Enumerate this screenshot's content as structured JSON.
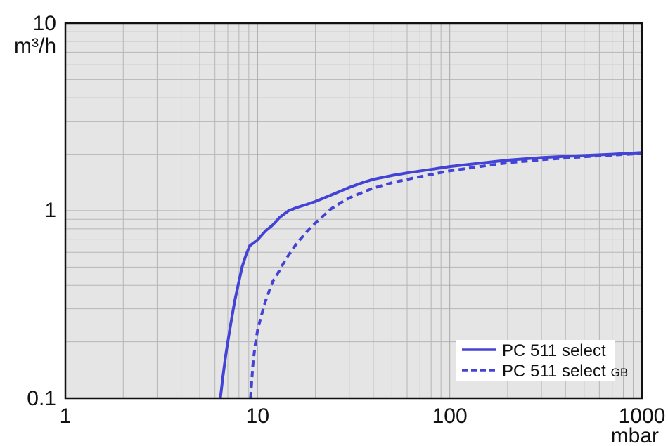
{
  "chart_data": {
    "type": "line",
    "title": "",
    "x_axis": {
      "label": "mbar",
      "scale": "log",
      "min": 1,
      "max": 1000,
      "ticks": [
        1,
        10,
        100,
        1000
      ],
      "tick_labels": [
        "1",
        "10",
        "100",
        "1000"
      ]
    },
    "y_axis": {
      "label": "m³/h",
      "scale": "log",
      "min": 0.1,
      "max": 10,
      "ticks": [
        0.1,
        1,
        10
      ],
      "tick_labels": [
        "0.1",
        "1",
        "10"
      ]
    },
    "grid": {
      "minor": true,
      "background_color": "#e5e5e5",
      "major_color": "#a8a8a8",
      "minor_color": "#b6b6b6",
      "frame_color": "#111111"
    },
    "legend": {
      "position": "bottom-right",
      "background_color": "#ffffff"
    },
    "accent_color": "#4343d6",
    "series": [
      {
        "name": "PC 511 select",
        "suffix": "",
        "style": "solid",
        "color": "#4343d6",
        "points": [
          [
            6.4,
            0.1
          ],
          [
            6.6,
            0.13
          ],
          [
            6.8,
            0.165
          ],
          [
            7.0,
            0.2
          ],
          [
            7.3,
            0.26
          ],
          [
            7.6,
            0.33
          ],
          [
            8.0,
            0.42
          ],
          [
            8.3,
            0.5
          ],
          [
            8.7,
            0.58
          ],
          [
            9.1,
            0.65
          ],
          [
            10,
            0.7
          ],
          [
            11,
            0.78
          ],
          [
            12,
            0.84
          ],
          [
            13,
            0.92
          ],
          [
            14.5,
            1.0
          ],
          [
            16,
            1.04
          ],
          [
            18,
            1.08
          ],
          [
            20,
            1.12
          ],
          [
            25,
            1.23
          ],
          [
            30,
            1.33
          ],
          [
            35,
            1.41
          ],
          [
            40,
            1.47
          ],
          [
            50,
            1.54
          ],
          [
            60,
            1.59
          ],
          [
            80,
            1.66
          ],
          [
            100,
            1.72
          ],
          [
            150,
            1.8
          ],
          [
            200,
            1.86
          ],
          [
            300,
            1.92
          ],
          [
            400,
            1.95
          ],
          [
            500,
            1.97
          ],
          [
            700,
            2.0
          ],
          [
            1000,
            2.04
          ]
        ]
      },
      {
        "name": "PC 511 select",
        "suffix": "GB",
        "style": "dashed",
        "color": "#4343d6",
        "points": [
          [
            9.2,
            0.1
          ],
          [
            9.45,
            0.15
          ],
          [
            9.7,
            0.19
          ],
          [
            10.0,
            0.23
          ],
          [
            10.4,
            0.27
          ],
          [
            11,
            0.33
          ],
          [
            12,
            0.42
          ],
          [
            13,
            0.48
          ],
          [
            14,
            0.55
          ],
          [
            16,
            0.67
          ],
          [
            18,
            0.77
          ],
          [
            20,
            0.86
          ],
          [
            22,
            0.94
          ],
          [
            24,
            1.02
          ],
          [
            27,
            1.1
          ],
          [
            30,
            1.17
          ],
          [
            35,
            1.25
          ],
          [
            40,
            1.32
          ],
          [
            50,
            1.41
          ],
          [
            60,
            1.47
          ],
          [
            80,
            1.56
          ],
          [
            100,
            1.63
          ],
          [
            150,
            1.73
          ],
          [
            200,
            1.8
          ],
          [
            300,
            1.87
          ],
          [
            400,
            1.91
          ],
          [
            500,
            1.94
          ],
          [
            700,
            1.98
          ],
          [
            1000,
            2.02
          ]
        ]
      }
    ]
  }
}
